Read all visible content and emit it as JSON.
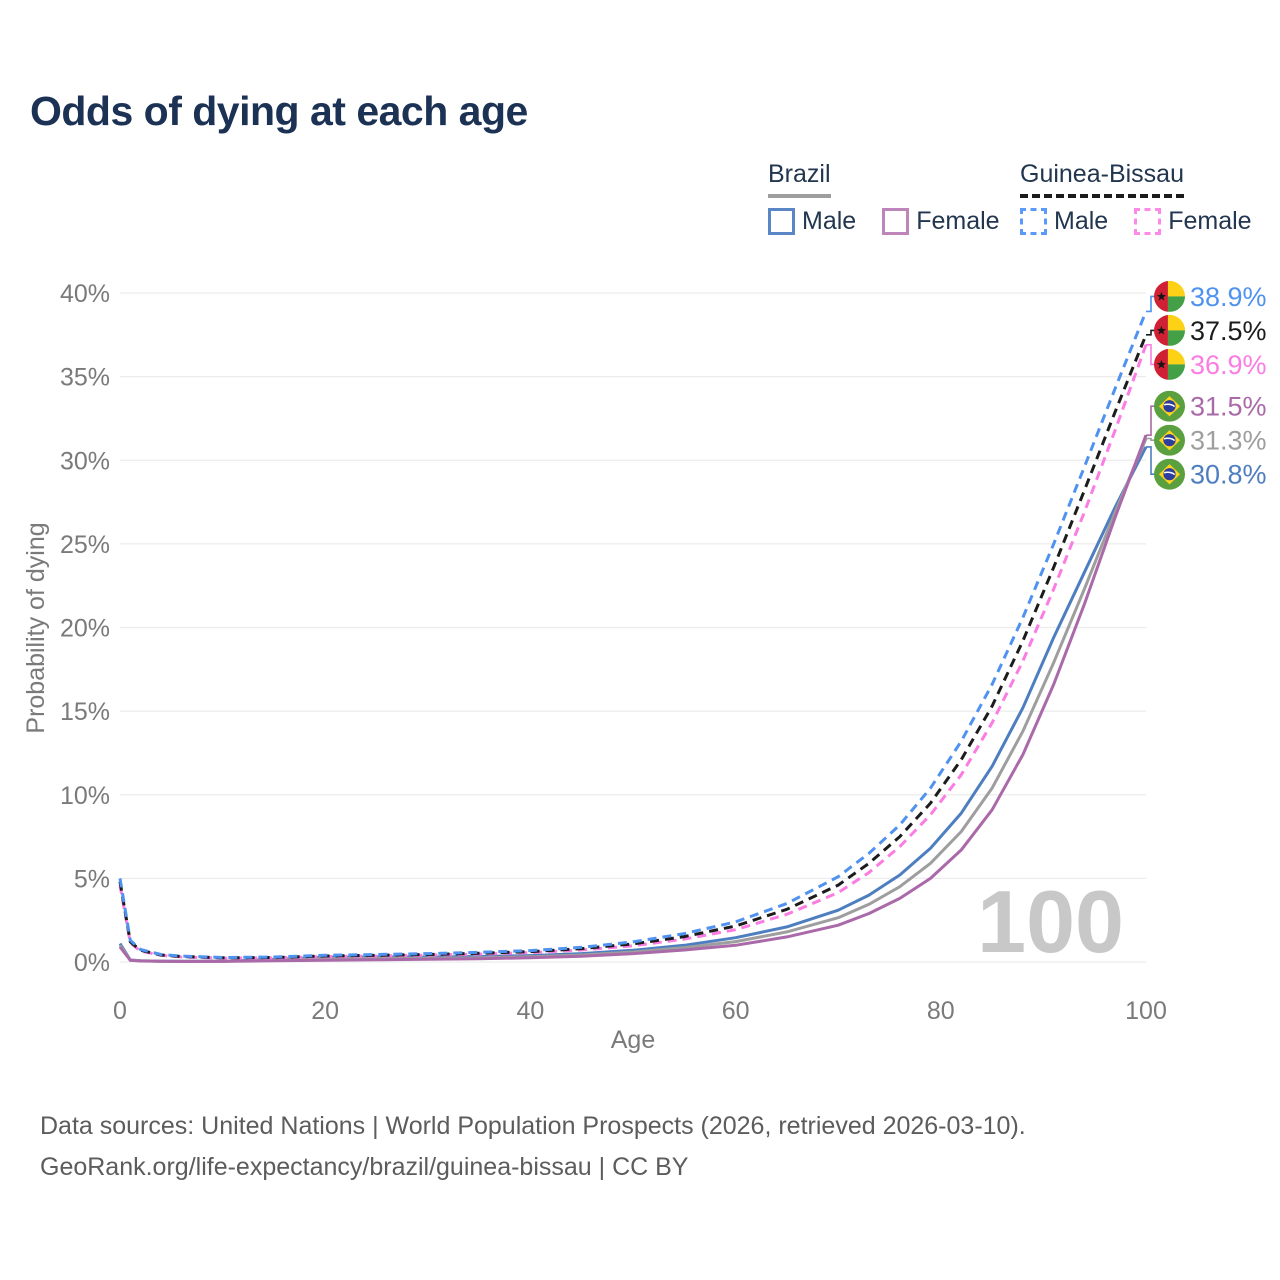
{
  "title": "Odds of dying at each age",
  "legend": {
    "groups": [
      {
        "country": "Brazil",
        "underline": "solid",
        "underline_color": "#9e9e9e",
        "items": [
          {
            "label": "Male",
            "color": "#5b86c5",
            "dash": "solid"
          },
          {
            "label": "Female",
            "color": "#bd85ba",
            "dash": "solid"
          }
        ]
      },
      {
        "country": "Guinea-Bissau",
        "underline": "dashed",
        "underline_color": "#1c1c1c",
        "items": [
          {
            "label": "Male",
            "color": "#5b9bf7",
            "dash": "dashed"
          },
          {
            "label": "Female",
            "color": "#fc8ae8",
            "dash": "dashed"
          }
        ]
      }
    ]
  },
  "chart_data": {
    "type": "line",
    "title": "Odds of dying at each age",
    "xlabel": "Age",
    "ylabel": "Probability of dying",
    "xlim": [
      0,
      100
    ],
    "ylim": [
      0,
      40
    ],
    "xticks": [
      "0",
      "20",
      "40",
      "60",
      "80",
      "100"
    ],
    "yticks": [
      "0%",
      "5%",
      "10%",
      "15%",
      "20%",
      "25%",
      "30%",
      "35%",
      "40%"
    ],
    "grid": "horizontal",
    "legend_position": "top-right",
    "watermark_age": "100",
    "x": [
      0,
      1,
      2,
      4,
      6,
      10,
      15,
      20,
      25,
      30,
      35,
      40,
      45,
      50,
      55,
      60,
      65,
      70,
      73,
      76,
      79,
      82,
      85,
      88,
      91,
      94,
      97,
      100
    ],
    "series": [
      {
        "name": "Brazil Male",
        "country": "Brazil",
        "sex": "Male",
        "color": "#4d7ec0",
        "dash": "solid",
        "flag": "br",
        "end_label": "30.8%",
        "values": [
          1.1,
          0.12,
          0.08,
          0.05,
          0.04,
          0.05,
          0.15,
          0.28,
          0.3,
          0.3,
          0.33,
          0.38,
          0.5,
          0.7,
          1.0,
          1.45,
          2.1,
          3.1,
          4.0,
          5.2,
          6.8,
          8.9,
          11.7,
          15.2,
          19.4,
          23.3,
          27.2,
          30.8
        ]
      },
      {
        "name": "Brazil Both sexes",
        "country": "Brazil",
        "sex": "Both",
        "color": "#9e9e9e",
        "dash": "solid",
        "flag": "br",
        "end_label": "31.3%",
        "values": [
          1.0,
          0.11,
          0.07,
          0.045,
          0.035,
          0.04,
          0.11,
          0.2,
          0.22,
          0.23,
          0.26,
          0.31,
          0.42,
          0.6,
          0.86,
          1.22,
          1.8,
          2.65,
          3.45,
          4.5,
          5.9,
          7.8,
          10.4,
          13.8,
          17.9,
          22.3,
          26.9,
          31.3
        ]
      },
      {
        "name": "Brazil Female",
        "country": "Brazil",
        "sex": "Female",
        "color": "#aa69a8",
        "dash": "solid",
        "flag": "br",
        "end_label": "31.5%",
        "values": [
          0.9,
          0.1,
          0.06,
          0.04,
          0.03,
          0.035,
          0.07,
          0.11,
          0.13,
          0.16,
          0.2,
          0.25,
          0.34,
          0.5,
          0.72,
          1.0,
          1.5,
          2.2,
          2.9,
          3.8,
          5.0,
          6.7,
          9.1,
          12.4,
          16.6,
          21.4,
          26.6,
          31.5
        ]
      },
      {
        "name": "Guinea-Bissau Female",
        "country": "Guinea-Bissau",
        "sex": "Female",
        "color": "#fb7ce2",
        "dash": "dashed",
        "flag": "gw",
        "end_label": "36.9%",
        "values": [
          4.6,
          1.15,
          0.65,
          0.4,
          0.3,
          0.23,
          0.25,
          0.32,
          0.36,
          0.41,
          0.47,
          0.56,
          0.72,
          0.97,
          1.37,
          1.93,
          2.85,
          4.15,
          5.35,
          6.9,
          8.8,
          11.2,
          14.3,
          18.0,
          22.3,
          26.9,
          31.8,
          36.9
        ]
      },
      {
        "name": "Guinea-Bissau Both sexes",
        "country": "Guinea-Bissau",
        "sex": "Both",
        "color": "#1c1c1c",
        "dash": "dashed",
        "flag": "gw",
        "end_label": "37.5%",
        "values": [
          4.8,
          1.2,
          0.7,
          0.42,
          0.33,
          0.25,
          0.27,
          0.36,
          0.4,
          0.45,
          0.52,
          0.62,
          0.8,
          1.08,
          1.52,
          2.15,
          3.15,
          4.6,
          5.9,
          7.5,
          9.5,
          12.1,
          15.3,
          19.2,
          23.6,
          28.2,
          32.9,
          37.5
        ]
      },
      {
        "name": "Guinea-Bissau Male",
        "country": "Guinea-Bissau",
        "sex": "Male",
        "color": "#4f92f0",
        "dash": "dashed",
        "flag": "gw",
        "end_label": "38.9%",
        "values": [
          5.0,
          1.3,
          0.75,
          0.45,
          0.35,
          0.27,
          0.3,
          0.4,
          0.45,
          0.5,
          0.58,
          0.68,
          0.88,
          1.2,
          1.7,
          2.4,
          3.5,
          5.1,
          6.5,
          8.2,
          10.4,
          13.2,
          16.6,
          20.6,
          25.0,
          29.6,
          34.3,
          38.9
        ]
      }
    ]
  },
  "footer": {
    "line1": "Data sources: United Nations | World Population Prospects (2026, retrieved 2026-03-10).",
    "line2": "GeoRank.org/life-expectancy/brazil/guinea-bissau | CC BY"
  }
}
